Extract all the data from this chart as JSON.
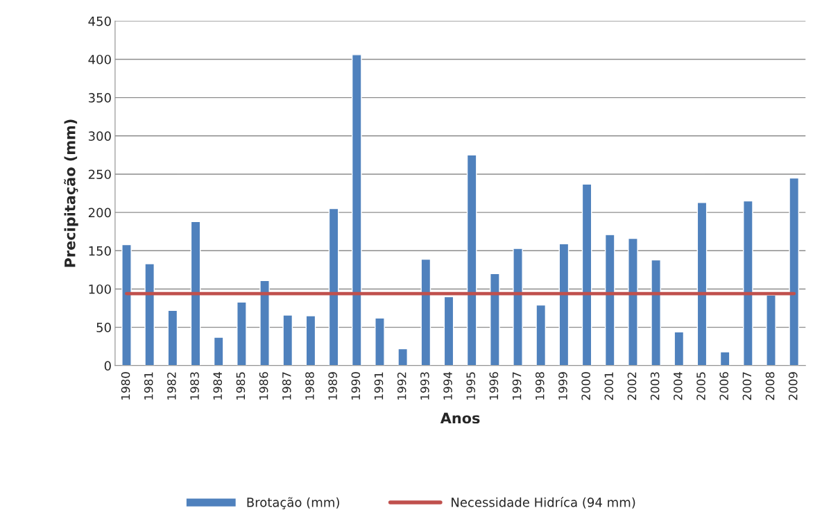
{
  "chart_data": {
    "type": "bar",
    "xlabel": "Anos",
    "ylabel": "Precipitação (mm)",
    "categories": [
      "1980",
      "1981",
      "1982",
      "1983",
      "1984",
      "1985",
      "1986",
      "1987",
      "1988",
      "1989",
      "1990",
      "1991",
      "1992",
      "1993",
      "1994",
      "1995",
      "1996",
      "1997",
      "1998",
      "1999",
      "2000",
      "2001",
      "2002",
      "2003",
      "2004",
      "2005",
      "2006",
      "2007",
      "2008",
      "2009"
    ],
    "series": [
      {
        "name": "Brotação (mm)",
        "color": "#4f81bd",
        "values": [
          158,
          133,
          72,
          188,
          37,
          83,
          111,
          66,
          65,
          205,
          406,
          62,
          22,
          139,
          90,
          275,
          120,
          153,
          79,
          159,
          237,
          171,
          166,
          138,
          44,
          213,
          18,
          215,
          92,
          245
        ]
      },
      {
        "name": "Necessidade Hidríca (94 mm)",
        "type": "line",
        "color": "#c0504d",
        "values": [
          94,
          94,
          94,
          94,
          94,
          94,
          94,
          94,
          94,
          94,
          94,
          94,
          94,
          94,
          94,
          94,
          94,
          94,
          94,
          94,
          94,
          94,
          94,
          94,
          94,
          94,
          94,
          94,
          94,
          94
        ]
      }
    ],
    "ylim": [
      0,
      450
    ],
    "yticks": [
      0,
      50,
      100,
      150,
      200,
      250,
      300,
      350,
      400,
      450
    ],
    "grid": "y",
    "legend": "bottom"
  }
}
